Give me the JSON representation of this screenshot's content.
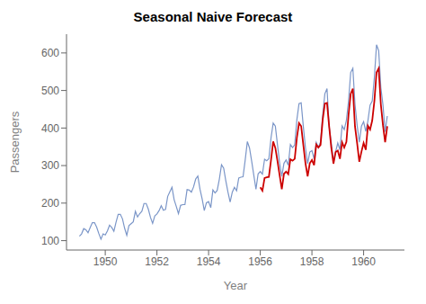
{
  "chart_data": {
    "type": "line",
    "title": "Seasonal Naive Forecast",
    "xlabel": "Year",
    "ylabel": "Passengers",
    "xlim": [
      1948.5,
      1961.58
    ],
    "ylim": [
      75,
      650
    ],
    "xticks": [
      1950,
      1952,
      1954,
      1956,
      1958,
      1960
    ],
    "yticks": [
      100,
      200,
      300,
      400,
      500,
      600
    ],
    "grid": false,
    "x": [
      1949,
      1949.0833333333333,
      1949.1666666666667,
      1949.25,
      1949.3333333333333,
      1949.4166666666667,
      1949.5,
      1949.5833333333333,
      1949.6666666666667,
      1949.75,
      1949.8333333333333,
      1949.9166666666667,
      1950,
      1950.0833333333333,
      1950.1666666666667,
      1950.25,
      1950.3333333333333,
      1950.4166666666667,
      1950.5,
      1950.5833333333333,
      1950.6666666666667,
      1950.75,
      1950.8333333333333,
      1950.9166666666667,
      1951,
      1951.0833333333333,
      1951.1666666666667,
      1951.25,
      1951.3333333333333,
      1951.4166666666667,
      1951.5,
      1951.5833333333333,
      1951.6666666666667,
      1951.75,
      1951.8333333333333,
      1951.9166666666667,
      1952,
      1952.0833333333333,
      1952.1666666666667,
      1952.25,
      1952.3333333333333,
      1952.4166666666667,
      1952.5,
      1952.5833333333333,
      1952.6666666666667,
      1952.75,
      1952.8333333333333,
      1952.9166666666667,
      1953,
      1953.0833333333333,
      1953.1666666666667,
      1953.25,
      1953.3333333333333,
      1953.4166666666667,
      1953.5,
      1953.5833333333333,
      1953.6666666666667,
      1953.75,
      1953.8333333333333,
      1953.9166666666667,
      1954,
      1954.0833333333333,
      1954.1666666666667,
      1954.25,
      1954.3333333333333,
      1954.4166666666667,
      1954.5,
      1954.5833333333333,
      1954.6666666666667,
      1954.75,
      1954.8333333333333,
      1954.9166666666667,
      1955,
      1955.0833333333333,
      1955.1666666666667,
      1955.25,
      1955.3333333333333,
      1955.4166666666667,
      1955.5,
      1955.5833333333333,
      1955.6666666666667,
      1955.75,
      1955.8333333333333,
      1955.9166666666667,
      1956,
      1956.0833333333333,
      1956.1666666666667,
      1956.25,
      1956.3333333333333,
      1956.4166666666667,
      1956.5,
      1956.5833333333333,
      1956.6666666666667,
      1956.75,
      1956.8333333333333,
      1956.9166666666667,
      1957,
      1957.0833333333333,
      1957.1666666666667,
      1957.25,
      1957.3333333333333,
      1957.4166666666667,
      1957.5,
      1957.5833333333333,
      1957.6666666666667,
      1957.75,
      1957.8333333333333,
      1957.9166666666667,
      1958,
      1958.0833333333333,
      1958.1666666666667,
      1958.25,
      1958.3333333333333,
      1958.4166666666667,
      1958.5,
      1958.5833333333333,
      1958.6666666666667,
      1958.75,
      1958.8333333333333,
      1958.9166666666667,
      1959,
      1959.0833333333333,
      1959.1666666666667,
      1959.25,
      1959.3333333333333,
      1959.4166666666667,
      1959.5,
      1959.5833333333333,
      1959.6666666666667,
      1959.75,
      1959.8333333333333,
      1959.9166666666667,
      1960,
      1960.0833333333333,
      1960.1666666666667,
      1960.25,
      1960.3333333333333,
      1960.4166666666667,
      1960.5,
      1960.5833333333333,
      1960.6666666666667,
      1960.75,
      1960.8333333333333,
      1960.9166666666667
    ],
    "series": [
      {
        "color": "#7B96C8",
        "values": [
          112,
          118,
          132,
          129,
          121,
          135,
          148,
          148,
          136,
          119,
          104,
          118,
          115,
          126,
          141,
          135,
          125,
          149,
          170,
          170,
          158,
          133,
          114,
          140,
          145,
          150,
          178,
          163,
          172,
          178,
          199,
          199,
          184,
          162,
          146,
          166,
          171,
          180,
          193,
          181,
          183,
          218,
          230,
          242,
          209,
          191,
          172,
          194,
          196,
          196,
          236,
          235,
          229,
          243,
          264,
          272,
          237,
          211,
          180,
          201,
          204,
          188,
          235,
          227,
          234,
          264,
          302,
          293,
          259,
          229,
          203,
          229,
          242,
          233,
          267,
          269,
          270,
          315,
          364,
          347,
          312,
          274,
          237,
          278,
          284,
          277,
          317,
          313,
          318,
          374,
          413,
          405,
          355,
          306,
          271,
          306,
          315,
          301,
          356,
          348,
          355,
          422,
          465,
          467,
          404,
          347,
          305,
          336,
          340,
          318,
          362,
          348,
          363,
          435,
          491,
          505,
          404,
          359,
          310,
          337,
          360,
          342,
          406,
          396,
          420,
          472,
          548,
          559,
          463,
          407,
          362,
          405,
          417,
          391,
          419,
          461,
          472,
          535,
          622,
          606,
          508,
          461,
          390,
          432
        ]
      },
      {
        "color": "#CC0000",
        "values": [
          null,
          null,
          null,
          null,
          null,
          null,
          null,
          null,
          null,
          null,
          null,
          null,
          null,
          null,
          null,
          null,
          null,
          null,
          null,
          null,
          null,
          null,
          null,
          null,
          null,
          null,
          null,
          null,
          null,
          null,
          null,
          null,
          null,
          null,
          null,
          null,
          null,
          null,
          null,
          null,
          null,
          null,
          null,
          null,
          null,
          null,
          null,
          null,
          null,
          null,
          null,
          null,
          null,
          null,
          null,
          null,
          null,
          null,
          null,
          null,
          null,
          null,
          null,
          null,
          null,
          null,
          null,
          null,
          null,
          null,
          null,
          null,
          null,
          null,
          null,
          null,
          null,
          null,
          null,
          null,
          null,
          null,
          null,
          null,
          242,
          233,
          267,
          269,
          270,
          315,
          364,
          347,
          312,
          274,
          237,
          278,
          284,
          277,
          317,
          313,
          318,
          374,
          413,
          405,
          355,
          306,
          271,
          306,
          315,
          301,
          356,
          348,
          355,
          422,
          465,
          467,
          404,
          347,
          305,
          336,
          340,
          318,
          362,
          348,
          363,
          435,
          491,
          505,
          404,
          359,
          310,
          337,
          360,
          342,
          406,
          396,
          420,
          472,
          548,
          559,
          463,
          407,
          362,
          405
        ]
      }
    ]
  }
}
